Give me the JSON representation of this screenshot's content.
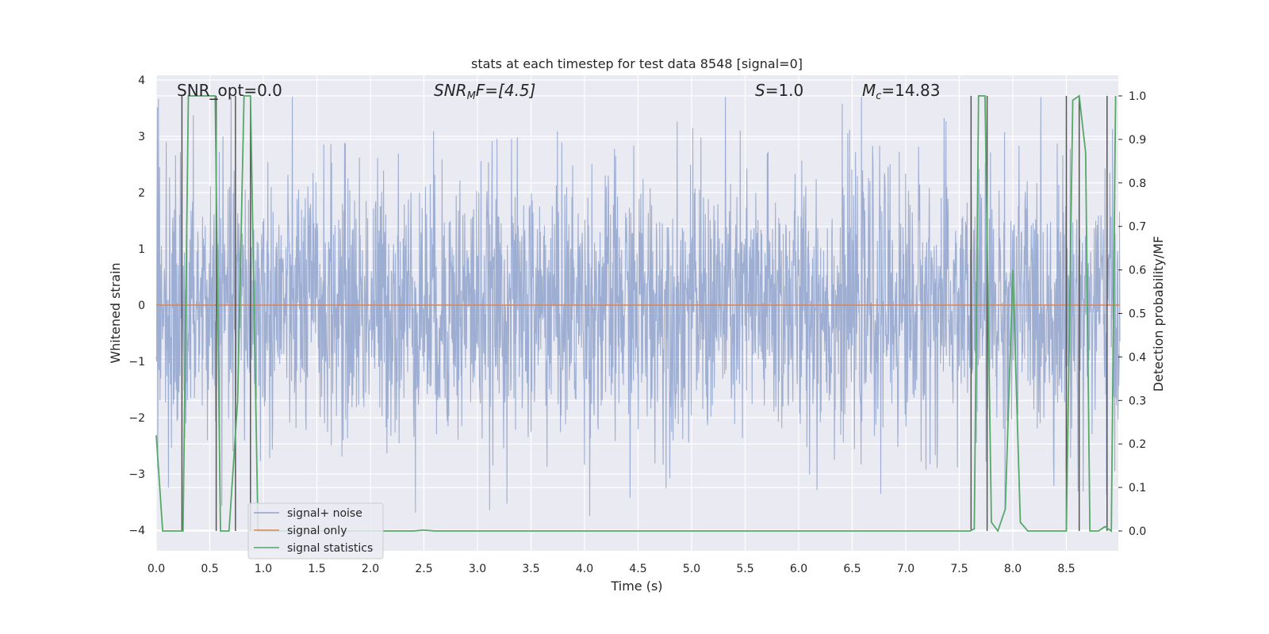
{
  "chart_data": {
    "type": "line",
    "title": "stats at each timestep for test data 8548 [signal=0]",
    "xlabel": "Time (s)",
    "ylabel": "Whitened strain",
    "y2label": "Detection probability/MF",
    "xlim": [
      0.0,
      9.0
    ],
    "ylim": [
      -4.35,
      4.1
    ],
    "y2lim": [
      -0.048,
      1.05
    ],
    "xticks": [
      "0.0",
      "0.5",
      "1.0",
      "1.5",
      "2.0",
      "2.5",
      "3.0",
      "3.5",
      "4.0",
      "4.5",
      "5.0",
      "5.5",
      "6.0",
      "6.5",
      "7.0",
      "7.5",
      "8.0",
      "8.5"
    ],
    "xtick_values": [
      0.0,
      0.5,
      1.0,
      1.5,
      2.0,
      2.5,
      3.0,
      3.5,
      4.0,
      4.5,
      5.0,
      5.5,
      6.0,
      6.5,
      7.0,
      7.5,
      8.0,
      8.5
    ],
    "yticks": [
      "4",
      "3",
      "2",
      "1",
      "0",
      "−1",
      "−2",
      "−3",
      "−4"
    ],
    "ytick_values": [
      4,
      3,
      2,
      1,
      0,
      -1,
      -2,
      -3,
      -4
    ],
    "y2ticks": [
      "1.0",
      "0.9",
      "0.8",
      "0.7",
      "0.6",
      "0.5",
      "0.4",
      "0.3",
      "0.2",
      "0.1",
      "0.0"
    ],
    "y2tick_values": [
      1.0,
      0.9,
      0.8,
      0.7,
      0.6,
      0.5,
      0.4,
      0.3,
      0.2,
      0.1,
      0.0
    ],
    "annotations": {
      "snr_opt": "SNR_opt=0.0",
      "snr_mf_main": "SNR",
      "snr_mf_sub": "M",
      "snr_mf_rest": "F=[4.5]",
      "s_main": "S",
      "s_rest": "=1.0",
      "mc_main": "M",
      "mc_sub": "c",
      "mc_rest": "=14.83"
    },
    "legend": {
      "position": "lower-left",
      "entries": [
        {
          "label": "signal+ noise",
          "color": "#8fa3cc"
        },
        {
          "label": "signal only",
          "color": "#dd8452"
        },
        {
          "label": "signal statistics",
          "color": "#55a868"
        }
      ]
    },
    "series": [
      {
        "name": "signal+ noise",
        "axis": "left",
        "color": "#8fa3cc",
        "note": "dense whitened noise, approx. uniform amplitude spanning about -4.0 to 3.7",
        "t_start": 0.0,
        "t_end": 9.0,
        "amplitude_range": [
          -4.0,
          3.7
        ]
      },
      {
        "name": "signal only",
        "axis": "left",
        "color": "#dd8452",
        "x": [
          0.0,
          9.0
        ],
        "values": [
          0.0,
          0.0
        ]
      },
      {
        "name": "signal statistics",
        "axis": "right",
        "color": "#55a868",
        "x": [
          0.0,
          0.06,
          0.25,
          0.3,
          0.55,
          0.6,
          0.68,
          0.76,
          0.82,
          0.88,
          0.95,
          1.0,
          2.0,
          2.4,
          2.5,
          2.6,
          3.0,
          5.0,
          7.0,
          7.6,
          7.64,
          7.68,
          7.74,
          7.8,
          7.86,
          7.93,
          8.0,
          8.07,
          8.14,
          8.2,
          8.5,
          8.56,
          8.62,
          8.68,
          8.72,
          8.8,
          8.86,
          8.92,
          8.96
        ],
        "values": [
          0.22,
          0.0,
          0.0,
          1.0,
          1.0,
          0.0,
          0.0,
          0.3,
          1.0,
          1.0,
          0.0,
          0.0,
          0.0,
          0.0,
          0.002,
          0.0,
          0.0,
          0.0,
          0.0,
          0.0,
          0.005,
          1.0,
          1.0,
          0.02,
          0.0,
          0.05,
          0.6,
          0.02,
          0.0,
          0.0,
          0.0,
          0.99,
          1.0,
          0.87,
          0.0,
          0.0,
          0.01,
          0.0,
          1.0
        ]
      }
    ],
    "vertical_markers": [
      0.24,
      0.56,
      0.74,
      0.88,
      7.61,
      7.76,
      8.5,
      8.62,
      8.88
    ]
  }
}
